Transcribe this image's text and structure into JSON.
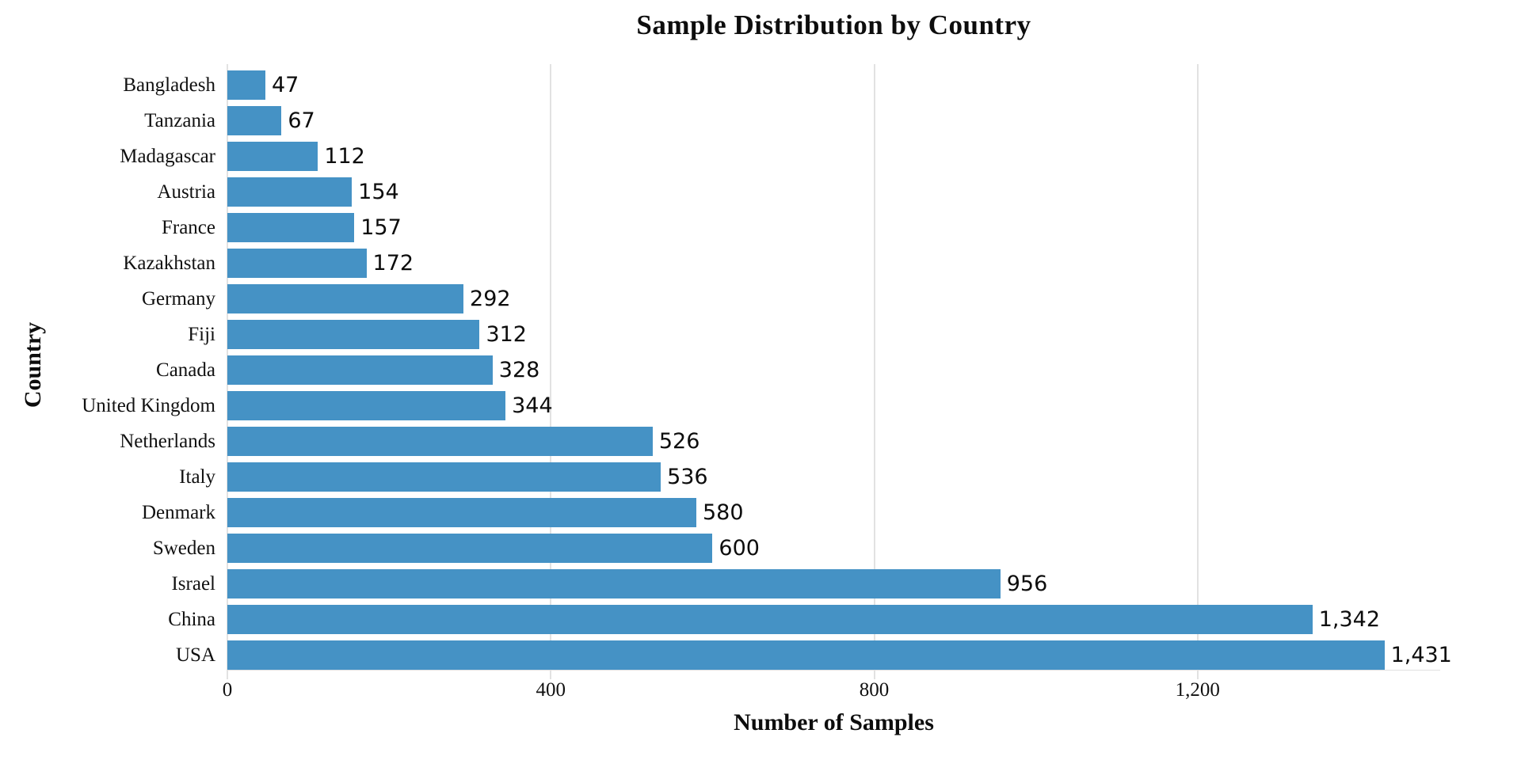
{
  "chart_data": {
    "type": "bar",
    "orientation": "horizontal",
    "title": "Sample Distribution by Country",
    "xlabel": "Number of Samples",
    "ylabel": "Country",
    "categories": [
      "Bangladesh",
      "Tanzania",
      "Madagascar",
      "Austria",
      "France",
      "Kazakhstan",
      "Germany",
      "Fiji",
      "Canada",
      "United Kingdom",
      "Netherlands",
      "Italy",
      "Denmark",
      "Sweden",
      "Israel",
      "China",
      "USA"
    ],
    "values": [
      47,
      67,
      112,
      154,
      157,
      172,
      292,
      312,
      328,
      344,
      526,
      536,
      580,
      600,
      956,
      1342,
      1431
    ],
    "value_labels": [
      "47",
      "67",
      "112",
      "154",
      "157",
      "172",
      "292",
      "312",
      "328",
      "344",
      "526",
      "536",
      "580",
      "600",
      "956",
      "1,342",
      "1,431"
    ],
    "xlim": [
      0,
      1500
    ],
    "xticks": [
      0,
      400,
      800,
      1200
    ],
    "xtick_labels": [
      "0",
      "400",
      "800",
      "1,200"
    ],
    "grid": "vertical",
    "legend_position": "none",
    "sort_order": "ascending top to bottom",
    "bar_color": "#4592c5",
    "grid_color": "#e2e2e2",
    "text_color": "#0d0d0d",
    "background_color": "#ffffff"
  }
}
